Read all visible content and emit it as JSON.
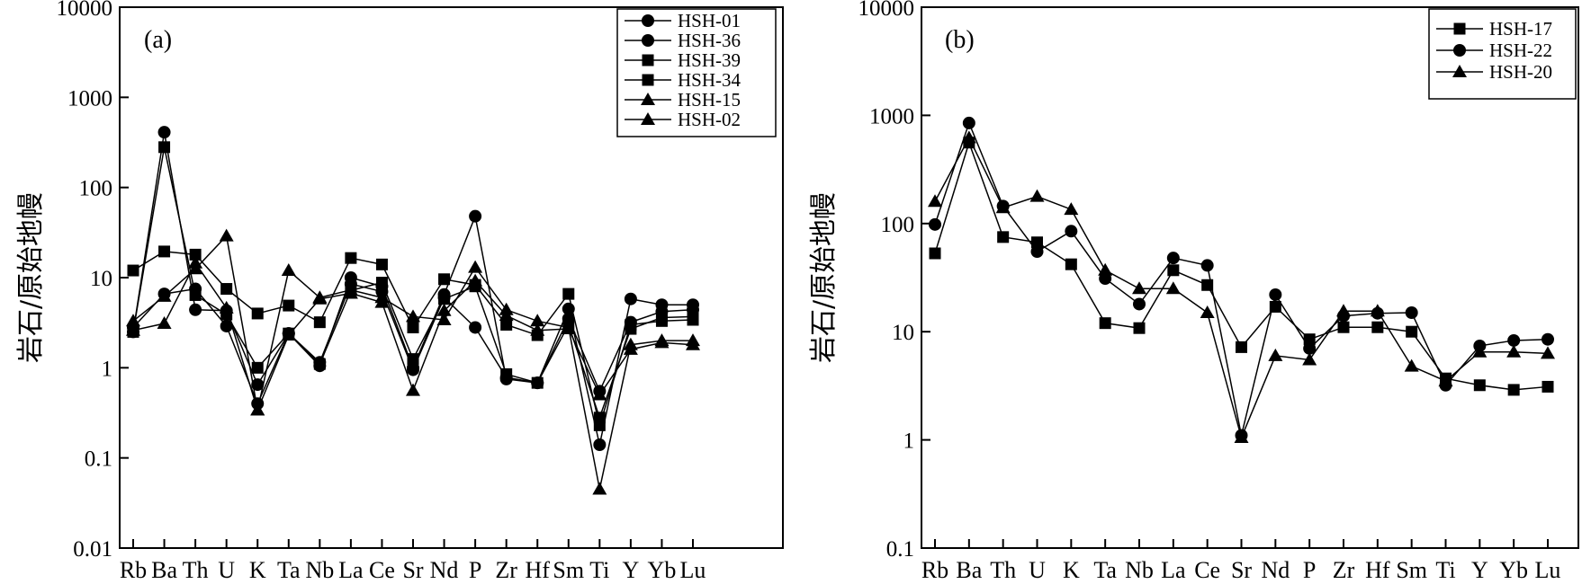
{
  "chart_data": [
    {
      "type": "line",
      "panel_label": "(a)",
      "ylabel": "岩石/原始地幔",
      "yscale": "log",
      "ylim": [
        0.01,
        10000
      ],
      "yticks": [
        0.01,
        0.1,
        1,
        10,
        100,
        1000,
        10000
      ],
      "ytick_labels": [
        "0.01",
        "0.1",
        "1",
        "10",
        "100",
        "1000",
        "10000"
      ],
      "categories": [
        "Rb",
        "Ba",
        "Th",
        "U",
        "K",
        "Ta",
        "Nb",
        "La",
        "Ce",
        "Sr",
        "Nd",
        "P",
        "Zr",
        "Hf",
        "Sm",
        "Ti",
        "Y",
        "Yb",
        "Lu"
      ],
      "tick_labels": [
        "Rb",
        "Ba",
        "Th",
        "U",
        "K",
        "Ta",
        "Nb",
        "La",
        "Ce",
        "Sr",
        "Nd",
        "P",
        "Zr",
        "Hf",
        "Sm",
        "Ti",
        "Y",
        "Yb",
        "Lu"
      ],
      "legend_position": "top-right",
      "series": [
        {
          "name": "HSH-01",
          "marker": "circle",
          "values": [
            2.5,
            410,
            4.4,
            4.3,
            0.65,
            2.4,
            1.05,
            10,
            8,
            1.0,
            6.5,
            48,
            0.75,
            0.68,
            4.5,
            0.14,
            5.8,
            5.0,
            5.0
          ]
        },
        {
          "name": "HSH-36",
          "marker": "circle",
          "values": [
            2.8,
            6.6,
            7.5,
            2.9,
            0.4,
            2.4,
            1.15,
            8.5,
            7.0,
            0.95,
            6.0,
            2.8,
            0.78,
            0.68,
            3.5,
            0.55,
            3.2,
            4.2,
            4.4
          ]
        },
        {
          "name": "HSH-39",
          "marker": "square",
          "values": [
            12,
            19.5,
            18,
            7.5,
            4.0,
            4.9,
            3.2,
            16.5,
            14,
            2.8,
            9.6,
            8.3,
            3.0,
            2.3,
            6.6,
            0.23,
            3.0,
            3.3,
            3.4
          ]
        },
        {
          "name": "HSH-34",
          "marker": "square",
          "values": [
            2.5,
            280,
            6.4,
            3.9,
            1.0,
            2.4,
            1.1,
            7.2,
            8.8,
            1.25,
            5.8,
            8.0,
            0.85,
            0.68,
            3.0,
            0.28,
            2.7,
            3.6,
            3.7
          ]
        },
        {
          "name": "HSH-15",
          "marker": "triangle",
          "values": [
            3.3,
            6.2,
            12.5,
            29,
            0.34,
            12,
            6.0,
            7.3,
            6.0,
            3.7,
            3.4,
            13,
            4.4,
            3.3,
            2.8,
            0.045,
            1.8,
            2.0,
            2.0
          ]
        },
        {
          "name": "HSH-02",
          "marker": "triangle",
          "values": [
            2.6,
            3.1,
            14.5,
            4.6,
            0.34,
            2.3,
            5.8,
            6.7,
            5.3,
            0.56,
            4.3,
            9.2,
            3.8,
            2.6,
            2.7,
            0.5,
            1.6,
            1.9,
            1.8
          ]
        }
      ]
    },
    {
      "type": "line",
      "panel_label": "(b)",
      "ylabel": "岩石/原始地幔",
      "yscale": "log",
      "ylim": [
        0.1,
        10000
      ],
      "yticks": [
        0.1,
        1,
        10,
        100,
        1000,
        10000
      ],
      "ytick_labels": [
        "0.1",
        "1",
        "10",
        "100",
        "1000",
        "10000"
      ],
      "categories": [
        "Rb",
        "Ba",
        "Th",
        "U",
        "K",
        "Ta",
        "Nb",
        "La",
        "Ce",
        "Sr",
        "Nd",
        "P",
        "Zr",
        "Hf",
        "Sm",
        "Ti",
        "Y",
        "Yb",
        "Lu"
      ],
      "tick_labels": [
        "Rb",
        "Ba",
        "Th",
        "U",
        "K",
        "Ta",
        "Nb",
        "La",
        "Ce",
        "Sr",
        "Nd",
        "P",
        "Zr",
        "Hf",
        "Sm",
        "Ti",
        "Y",
        "Yb",
        "Lu"
      ],
      "legend_position": "top-right",
      "series": [
        {
          "name": "HSH-17",
          "marker": "square",
          "values": [
            53,
            560,
            75,
            67,
            42,
            12,
            10.8,
            37,
            27,
            7.2,
            17,
            8.5,
            11,
            11,
            10,
            3.7,
            3.2,
            2.9,
            3.1
          ]
        },
        {
          "name": "HSH-22",
          "marker": "circle",
          "values": [
            98,
            850,
            145,
            55,
            85,
            31,
            18,
            48,
            41,
            1.1,
            22,
            7.0,
            14,
            14.8,
            15,
            3.2,
            7.4,
            8.3,
            8.5
          ]
        },
        {
          "name": "HSH-20",
          "marker": "triangle",
          "values": [
            160,
            620,
            140,
            178,
            135,
            37,
            25,
            25,
            15,
            1.05,
            6.0,
            5.5,
            15.5,
            15.5,
            4.8,
            3.5,
            6.5,
            6.5,
            6.3
          ]
        }
      ]
    }
  ]
}
